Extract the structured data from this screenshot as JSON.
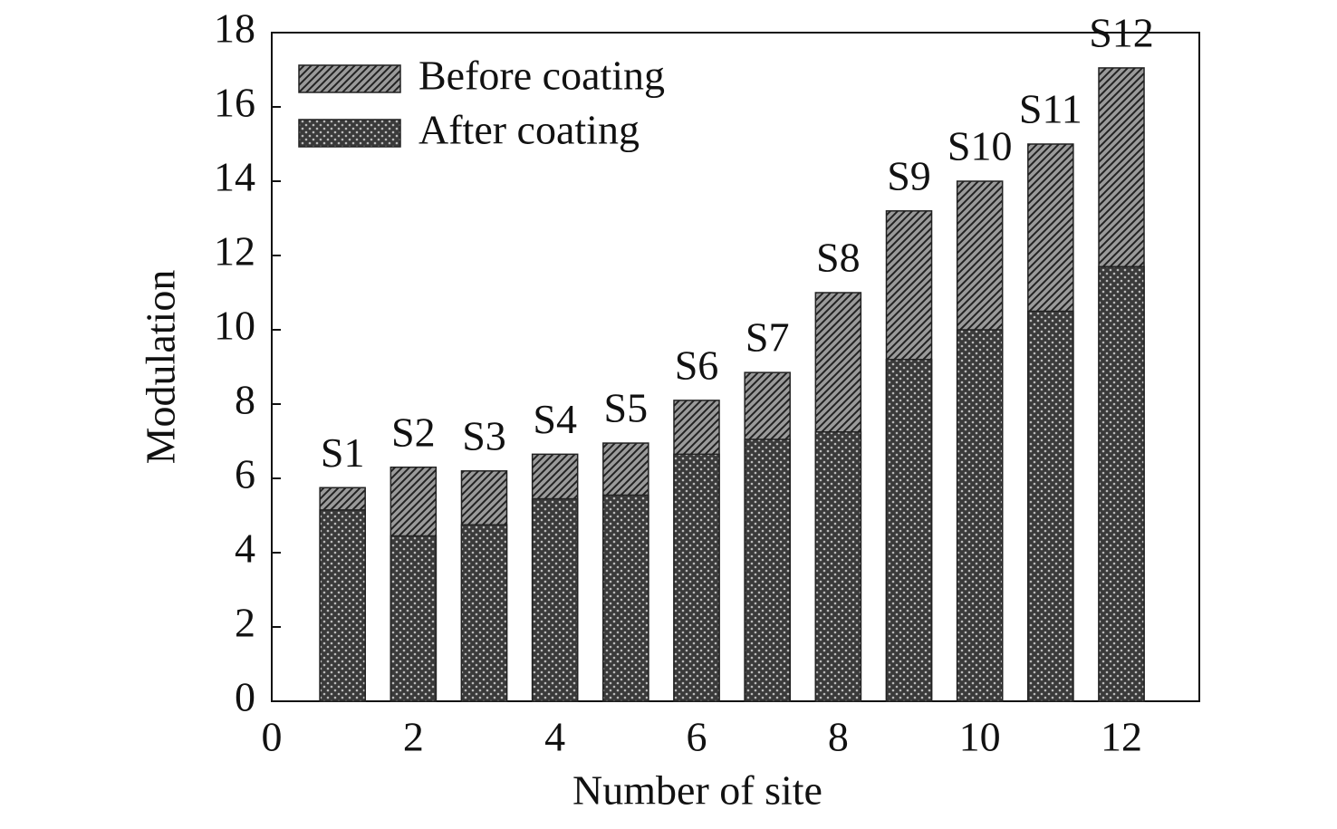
{
  "chart_data": {
    "type": "bar",
    "xlabel": "Number of site",
    "ylabel": "Modulation",
    "x": [
      1,
      2,
      3,
      4,
      5,
      6,
      7,
      8,
      9,
      10,
      11,
      12
    ],
    "labels": [
      "S1",
      "S2",
      "S3",
      "S4",
      "S5",
      "S6",
      "S7",
      "S8",
      "S9",
      "S10",
      "S11",
      "S12"
    ],
    "series": [
      {
        "name": "Before coating",
        "color": "#9a9a9a",
        "pattern": "hatch",
        "values": [
          5.75,
          6.3,
          6.2,
          6.65,
          6.95,
          8.1,
          8.85,
          11.0,
          13.2,
          14.0,
          15.0,
          17.05
        ]
      },
      {
        "name": "After coating",
        "color": "#3a3a3a",
        "pattern": "dots",
        "values": [
          5.15,
          4.45,
          4.75,
          5.45,
          5.55,
          6.65,
          7.05,
          7.25,
          9.2,
          10.0,
          10.5,
          11.7
        ]
      }
    ],
    "xlim": [
      0,
      13.1
    ],
    "xticks": [
      0,
      2,
      4,
      6,
      8,
      10,
      12
    ],
    "ylim": [
      0,
      18
    ],
    "yticks": [
      0,
      2,
      4,
      6,
      8,
      10,
      12,
      14,
      16,
      18
    ],
    "legend": "upper left",
    "grid": false
  }
}
